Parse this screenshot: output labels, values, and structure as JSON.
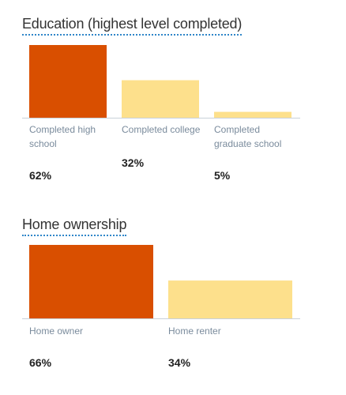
{
  "colors": {
    "primary": "#d94f00",
    "secondary": "#fde08c",
    "baseline": "#c9d1d9",
    "title_underline": "#2f86c9",
    "label": "#7a8b9c",
    "value": "#222222"
  },
  "chart_data": [
    {
      "type": "bar",
      "title": "Education (highest level completed)",
      "categories": [
        "Completed high school",
        "Completed college",
        "Completed graduate school"
      ],
      "values": [
        62,
        32,
        5
      ],
      "value_labels": [
        "62%",
        "32%",
        "5%"
      ],
      "highlight_index": 0,
      "xlabel": "",
      "ylabel": "",
      "ylim": [
        0,
        62
      ],
      "grid": false
    },
    {
      "type": "bar",
      "title": "Home ownership",
      "categories": [
        "Home owner",
        "Home renter"
      ],
      "values": [
        66,
        34
      ],
      "value_labels": [
        "66%",
        "34%"
      ],
      "highlight_index": 0,
      "xlabel": "",
      "ylabel": "",
      "ylim": [
        0,
        66
      ],
      "grid": false
    }
  ]
}
